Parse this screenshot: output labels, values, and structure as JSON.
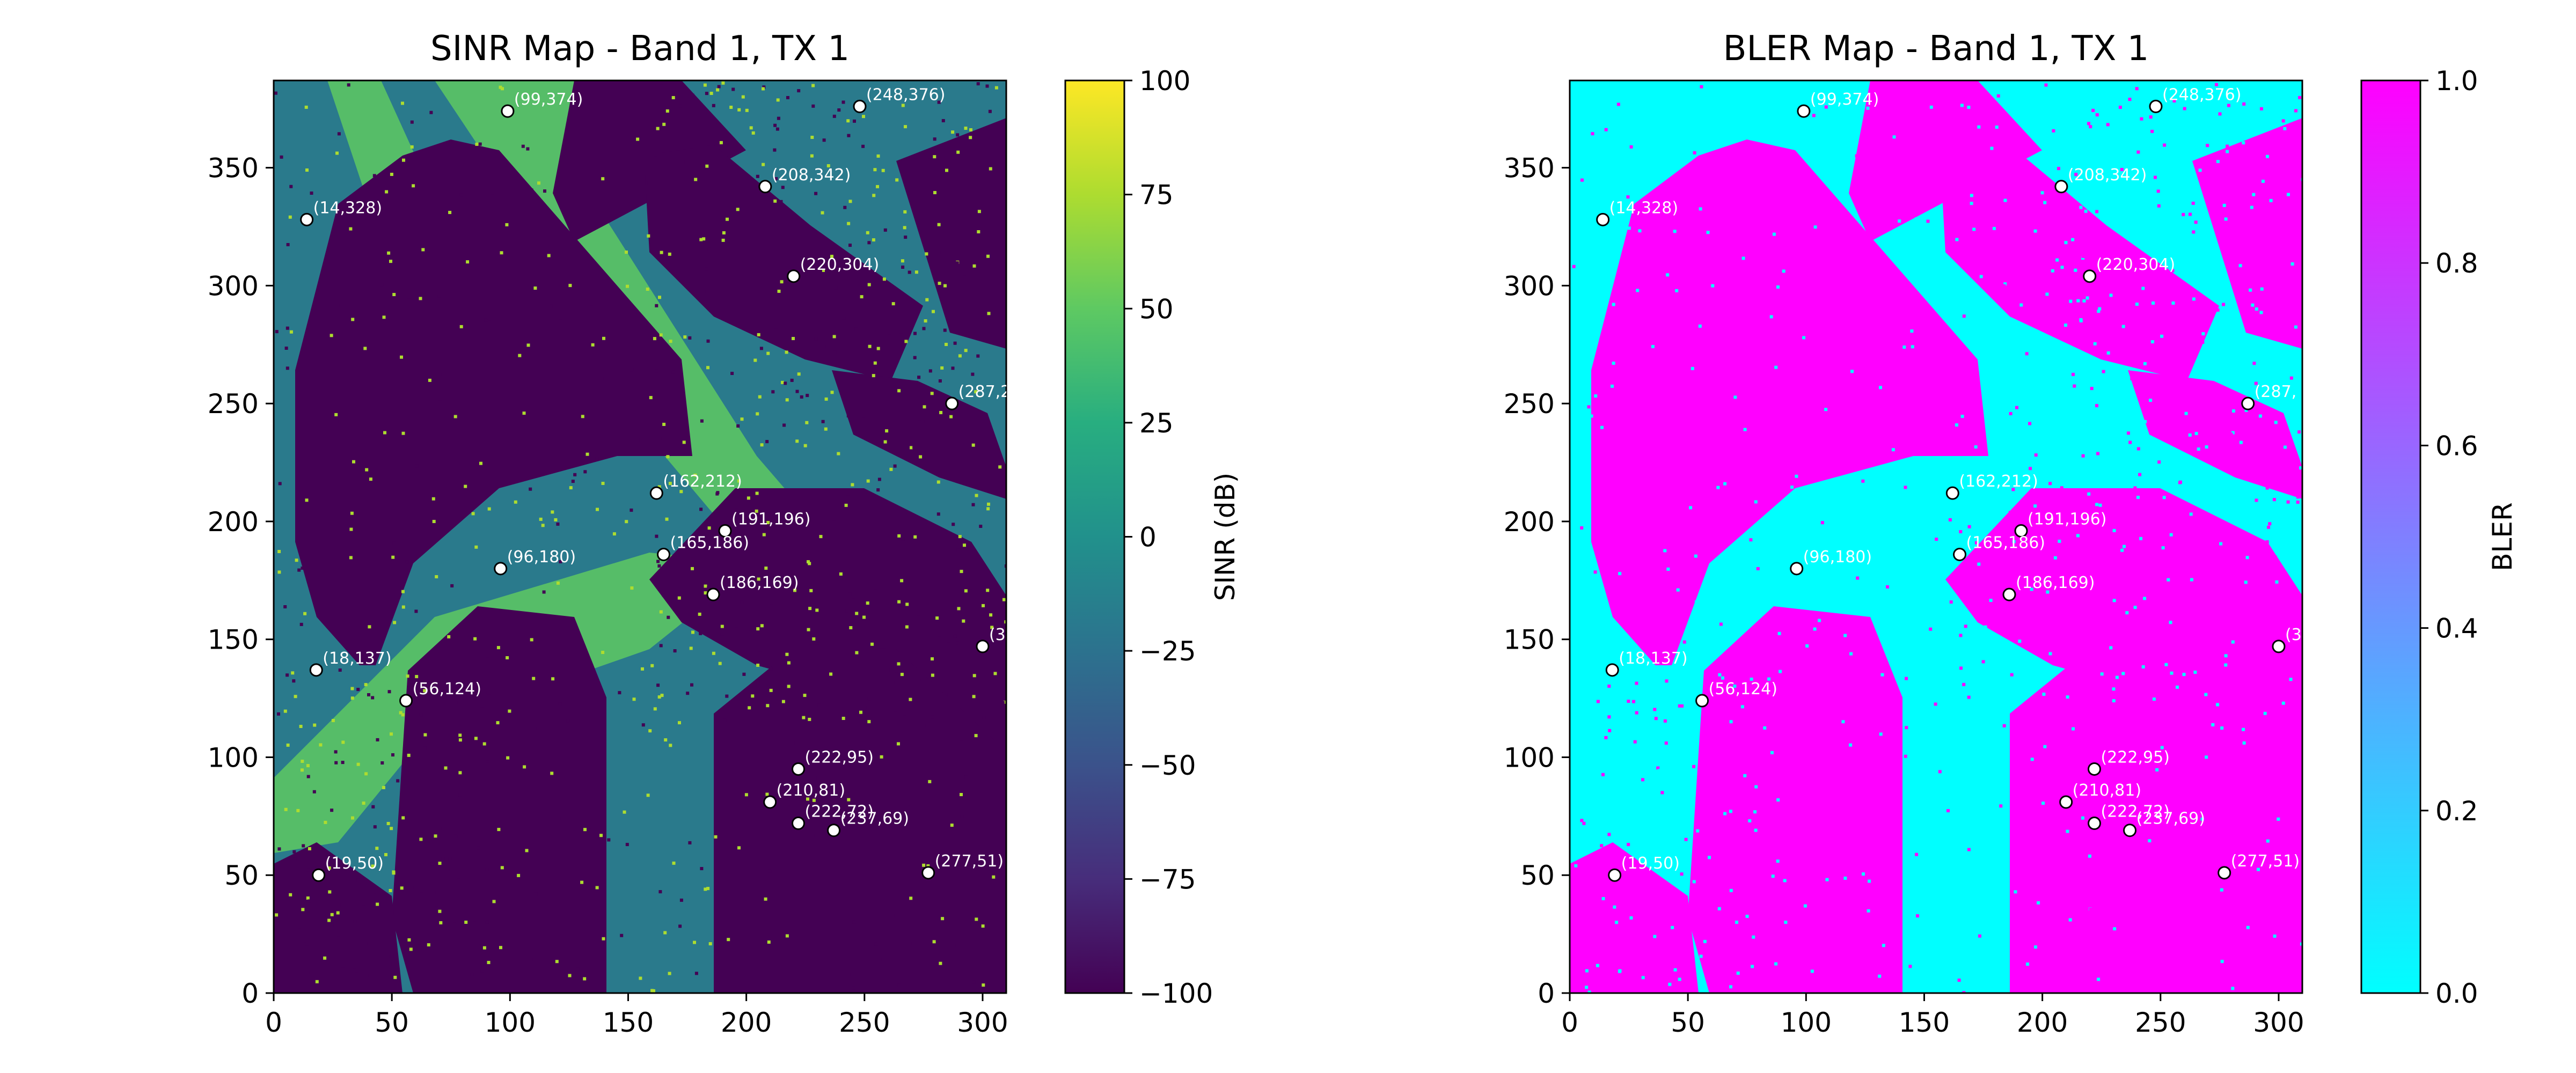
{
  "chart_data": [
    {
      "type": "heatmap",
      "title": "SINR Map - Band 1, TX 1",
      "xlabel": "",
      "ylabel": "",
      "xlim": [
        0,
        310
      ],
      "ylim": [
        0,
        387
      ],
      "xticks": [
        0,
        50,
        100,
        150,
        200,
        250,
        300
      ],
      "yticks": [
        0,
        50,
        100,
        150,
        200,
        250,
        300,
        350
      ],
      "colorbar": {
        "label": "SINR (dB)",
        "colormap": "viridis",
        "range": [
          -100,
          100
        ],
        "ticks": [
          -100,
          -75,
          -50,
          -25,
          0,
          25,
          50,
          75,
          100
        ],
        "tick_labels": [
          "−100",
          "−75",
          "−50",
          "−25",
          "0",
          "25",
          "50",
          "75",
          "100"
        ]
      },
      "markers": [
        {
          "x": 99,
          "y": 374,
          "label": "(99,374)"
        },
        {
          "x": 248,
          "y": 376,
          "label": "(248,376)"
        },
        {
          "x": 208,
          "y": 342,
          "label": "(208,342)"
        },
        {
          "x": 14,
          "y": 328,
          "label": "(14,328)"
        },
        {
          "x": 220,
          "y": 304,
          "label": "(220,304)"
        },
        {
          "x": 287,
          "y": 250,
          "label": "(287,2"
        },
        {
          "x": 162,
          "y": 212,
          "label": "(162,212)"
        },
        {
          "x": 191,
          "y": 196,
          "label": "(191,196)"
        },
        {
          "x": 165,
          "y": 186,
          "label": "(165,186)"
        },
        {
          "x": 96,
          "y": 180,
          "label": "(96,180)"
        },
        {
          "x": 186,
          "y": 169,
          "label": "(186,169)"
        },
        {
          "x": 300,
          "y": 147,
          "label": "(3"
        },
        {
          "x": 18,
          "y": 137,
          "label": "(18,137)"
        },
        {
          "x": 56,
          "y": 124,
          "label": "(56,124)"
        },
        {
          "x": 222,
          "y": 95,
          "label": "(222,95)"
        },
        {
          "x": 210,
          "y": 81,
          "label": "(210,81)"
        },
        {
          "x": 222,
          "y": 72,
          "label": "(222,72)"
        },
        {
          "x": 237,
          "y": 69,
          "label": "(237,69)"
        },
        {
          "x": 19,
          "y": 50,
          "label": "(19,50)"
        },
        {
          "x": 277,
          "y": 51,
          "label": "(277,51)"
        }
      ]
    },
    {
      "type": "heatmap",
      "title": "BLER Map - Band 1, TX 1",
      "xlabel": "",
      "ylabel": "",
      "xlim": [
        0,
        310
      ],
      "ylim": [
        0,
        387
      ],
      "xticks": [
        0,
        50,
        100,
        150,
        200,
        250,
        300
      ],
      "yticks": [
        0,
        50,
        100,
        150,
        200,
        250,
        300,
        350
      ],
      "colorbar": {
        "label": "BLER",
        "colormap": "cool",
        "range": [
          0,
          1
        ],
        "ticks": [
          0,
          0.2,
          0.4,
          0.6,
          0.8,
          1.0
        ],
        "tick_labels": [
          "0.0",
          "0.2",
          "0.4",
          "0.6",
          "0.8",
          "1.0"
        ]
      },
      "markers": [
        {
          "x": 99,
          "y": 374,
          "label": "(99,374)"
        },
        {
          "x": 248,
          "y": 376,
          "label": "(248,376)"
        },
        {
          "x": 208,
          "y": 342,
          "label": "(208,342)"
        },
        {
          "x": 14,
          "y": 328,
          "label": "(14,328)"
        },
        {
          "x": 220,
          "y": 304,
          "label": "(220,304)"
        },
        {
          "x": 287,
          "y": 250,
          "label": "(287,"
        },
        {
          "x": 162,
          "y": 212,
          "label": "(162,212)"
        },
        {
          "x": 191,
          "y": 196,
          "label": "(191,196)"
        },
        {
          "x": 165,
          "y": 186,
          "label": "(165,186)"
        },
        {
          "x": 96,
          "y": 180,
          "label": "(96,180)"
        },
        {
          "x": 186,
          "y": 169,
          "label": "(186,169)"
        },
        {
          "x": 300,
          "y": 147,
          "label": "(3"
        },
        {
          "x": 18,
          "y": 137,
          "label": "(18,137)"
        },
        {
          "x": 56,
          "y": 124,
          "label": "(56,124)"
        },
        {
          "x": 222,
          "y": 95,
          "label": "(222,95)"
        },
        {
          "x": 210,
          "y": 81,
          "label": "(210,81)"
        },
        {
          "x": 222,
          "y": 72,
          "label": "(222,72)"
        },
        {
          "x": 237,
          "y": 69,
          "label": "(237,69)"
        },
        {
          "x": 19,
          "y": 50,
          "label": "(19,50)"
        },
        {
          "x": 277,
          "y": 51,
          "label": "(277,51)"
        }
      ]
    }
  ]
}
